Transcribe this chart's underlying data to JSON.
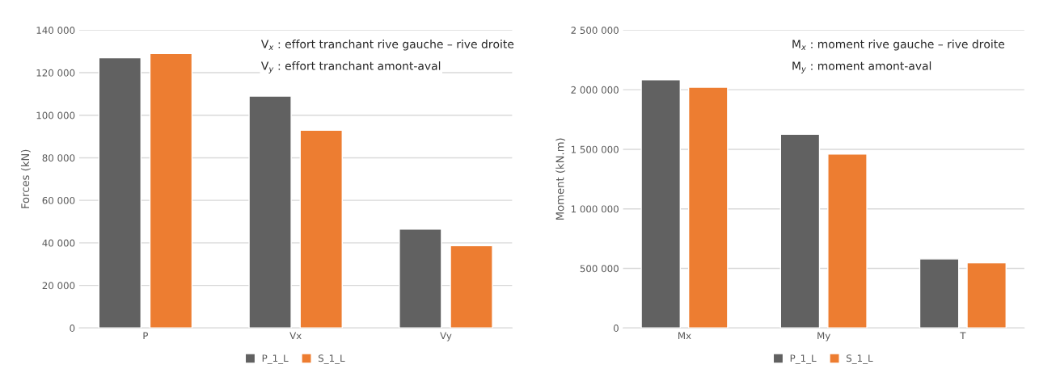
{
  "chart_data": [
    {
      "type": "bar",
      "categories": [
        "P",
        "Vx",
        "Vy"
      ],
      "ylabel": "Forces (kN)",
      "series": [
        {
          "name": "P_1_L",
          "color": "#616161",
          "values": [
            127000,
            109000,
            46500
          ]
        },
        {
          "name": "S_1_L",
          "color": "#ed7d31",
          "values": [
            129000,
            93000,
            38700
          ]
        }
      ],
      "ylim": [
        0,
        140000
      ],
      "yticks": [
        0,
        {
          "value": 20000,
          "label": "20 000"
        },
        {
          "value": 40000,
          "label": "40 000"
        },
        {
          "value": 60000,
          "label": "60 000"
        },
        {
          "value": 80000,
          "label": "80 000"
        },
        {
          "value": 100000,
          "label": "100 000"
        },
        {
          "value": 120000,
          "label": "120 000"
        },
        {
          "value": 140000,
          "label": "140 000"
        }
      ],
      "grid": "y",
      "legend": "bottom",
      "annotations": [
        "V$_{x}$ : effort tranchant rive gauche – rive droite",
        "V$_{y}$ : effort tranchant amont-aval"
      ]
    },
    {
      "type": "bar",
      "categories": [
        "Mx",
        "My",
        "T"
      ],
      "ylabel": "Moment (kN.m)",
      "series": [
        {
          "name": "P_1_L",
          "color": "#616161",
          "values": [
            2084000,
            1627000,
            579000
          ]
        },
        {
          "name": "S_1_L",
          "color": "#ed7d31",
          "values": [
            2021000,
            1461000,
            547000
          ]
        }
      ],
      "ylim": [
        0,
        2500000
      ],
      "yticks": [
        0,
        {
          "value": 500000,
          "label": "500 000"
        },
        {
          "value": 1000000,
          "label": "1 000 000"
        },
        {
          "value": 1500000,
          "label": "1 500 000"
        },
        {
          "value": 2000000,
          "label": "2 000 000"
        },
        {
          "value": 2500000,
          "label": "2 500 000"
        }
      ],
      "grid": "y",
      "legend": "bottom",
      "annotations": [
        "M$_{x}$ : moment rive gauche – rive droite",
        "M$_{y}$ : moment amont-aval"
      ]
    }
  ]
}
